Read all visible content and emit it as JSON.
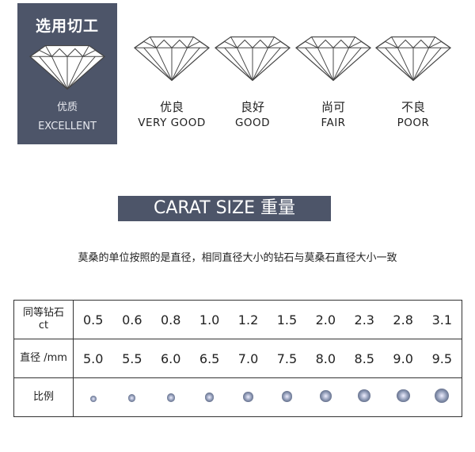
{
  "cut": {
    "title": "选用切工",
    "grades": [
      {
        "cn": "优质",
        "en": "EXCELLENT",
        "selected": true
      },
      {
        "cn": "优良",
        "en": "VERY GOOD"
      },
      {
        "cn": "良好",
        "en": "GOOD"
      },
      {
        "cn": "尚可",
        "en": "FAIR"
      },
      {
        "cn": "不良",
        "en": "POOR"
      }
    ],
    "accent": "#4d5569"
  },
  "banner": "CARAT SIZE 重量",
  "note": "莫桑的单位按照的是直径，相同直径大小的钻石与莫桑石直径大小一致",
  "table": {
    "row_labels": [
      "同等钻石\nct",
      "直径 /mm",
      "比例"
    ],
    "ct_label_1": "同等钻石",
    "ct_label_2": "ct",
    "ct": [
      "0.5",
      "0.6",
      "0.8",
      "1.0",
      "1.2",
      "1.5",
      "2.0",
      "2.3",
      "2.8",
      "3.1"
    ],
    "mm": [
      "5.0",
      "5.5",
      "6.0",
      "6.5",
      "7.0",
      "7.5",
      "8.0",
      "8.5",
      "9.0",
      "9.5"
    ]
  }
}
